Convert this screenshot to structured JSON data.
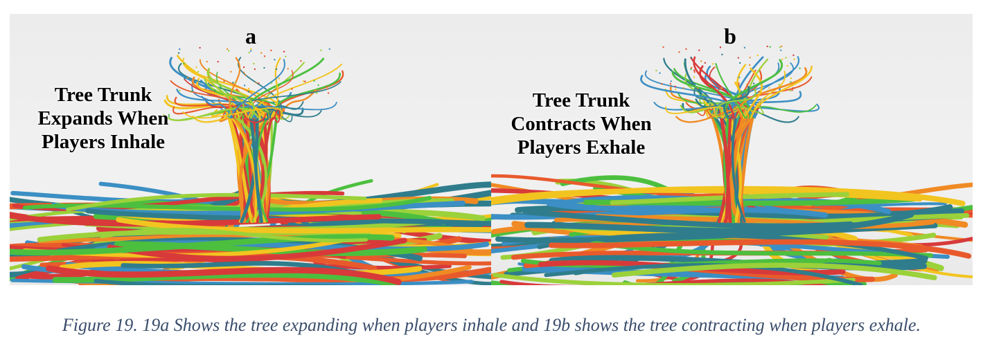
{
  "panels": [
    {
      "letter": "a",
      "label_lines": [
        "Tree Trunk",
        "Expands When",
        "Players Inhale"
      ]
    },
    {
      "letter": "b",
      "label_lines": [
        "Tree Trunk",
        "Contracts When",
        "Players Exhale"
      ]
    }
  ],
  "caption": "Figure 19. 19a Shows the tree expanding when players inhale and 19b shows the tree contracting when players exhale.",
  "colors": {
    "strands": [
      "#d83a3a",
      "#f2c420",
      "#f08a24",
      "#3b8fc4",
      "#4cbf3f",
      "#2f7d8c",
      "#e85a2c",
      "#9bd13a"
    ],
    "caption_text": "#3a4d6b",
    "background": "#ececec"
  }
}
